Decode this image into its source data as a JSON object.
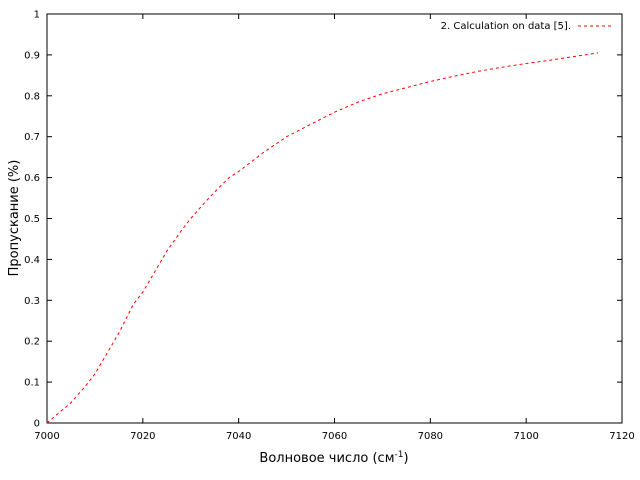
{
  "chart_data": {
    "type": "line",
    "title": "",
    "xlabel": "Волновое число (см",
    "xlabel_sup": "-1",
    "xlabel_close": ")",
    "ylabel": "Пропускание (%)",
    "xlim": [
      7000,
      7120
    ],
    "ylim": [
      0,
      1
    ],
    "x_ticks": [
      7000,
      7020,
      7040,
      7060,
      7080,
      7100,
      7120
    ],
    "y_ticks": [
      0,
      0.1,
      0.2,
      0.3,
      0.4,
      0.5,
      0.6,
      0.7,
      0.8,
      0.9,
      1
    ],
    "x_tick_labels": [
      "7000",
      "7020",
      "7040",
      "7060",
      "7080",
      "7100",
      "7120"
    ],
    "y_tick_labels": [
      "0",
      "0.1",
      "0.2",
      "0.3",
      "0.4",
      "0.5",
      "0.6",
      "0.7",
      "0.8",
      "0.9",
      "1"
    ],
    "grid": false,
    "legend_position": "top-right",
    "series": [
      {
        "name": "2. Calculation on data [5].",
        "color": "#ff0000",
        "line_style": "dashed",
        "x": [
          7000,
          7002,
          7005,
          7008,
          7010,
          7012,
          7015,
          7018,
          7020,
          7023,
          7025,
          7028,
          7030,
          7033,
          7035,
          7038,
          7040,
          7045,
          7050,
          7055,
          7060,
          7065,
          7070,
          7075,
          7080,
          7085,
          7090,
          7095,
          7100,
          7105,
          7110,
          7115
        ],
        "y": [
          0.0,
          0.02,
          0.05,
          0.09,
          0.12,
          0.16,
          0.22,
          0.29,
          0.32,
          0.38,
          0.42,
          0.47,
          0.5,
          0.54,
          0.565,
          0.6,
          0.615,
          0.66,
          0.7,
          0.73,
          0.76,
          0.785,
          0.805,
          0.82,
          0.835,
          0.848,
          0.86,
          0.87,
          0.879,
          0.887,
          0.896,
          0.905
        ]
      }
    ]
  }
}
